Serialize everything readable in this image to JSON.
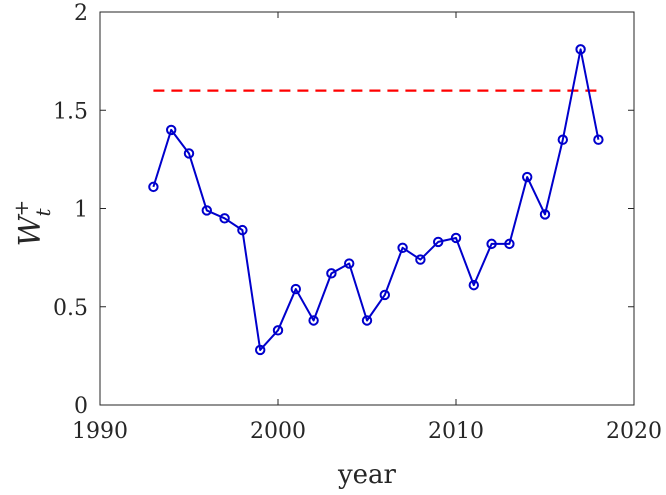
{
  "chart_data": {
    "type": "line",
    "xlabel": "year",
    "ylabel": {
      "main": "W",
      "superscript": "+",
      "subscript": "t"
    },
    "xlim": [
      1990,
      2020
    ],
    "ylim": [
      0,
      2
    ],
    "xticks": [
      1990,
      2000,
      2010,
      2020
    ],
    "yticks": [
      0,
      0.5,
      1,
      1.5,
      2
    ],
    "xtick_labels": [
      "1990",
      "2000",
      "2010",
      "2020"
    ],
    "ytick_labels": [
      "0",
      "0.5",
      "1",
      "1.5",
      "2"
    ],
    "grid": false,
    "box": true,
    "series": [
      {
        "color": "#0000cc",
        "marker": "circle",
        "x": [
          1993,
          1994,
          1995,
          1996,
          1997,
          1998,
          1999,
          2000,
          2001,
          2002,
          2003,
          2004,
          2005,
          2006,
          2007,
          2008,
          2009,
          2010,
          2011,
          2012,
          2013,
          2014,
          2015,
          2016,
          2017,
          2018
        ],
        "y": [
          1.11,
          1.4,
          1.28,
          0.99,
          0.95,
          0.89,
          0.28,
          0.38,
          0.59,
          0.43,
          0.67,
          0.72,
          0.43,
          0.56,
          0.8,
          0.74,
          0.83,
          0.85,
          0.61,
          0.82,
          0.82,
          1.16,
          0.97,
          1.35,
          1.81,
          1.35
        ]
      }
    ],
    "reference_line": {
      "style": "dashed",
      "color": "#ff0000",
      "x": [
        1993,
        2018
      ],
      "y": 1.6
    }
  }
}
